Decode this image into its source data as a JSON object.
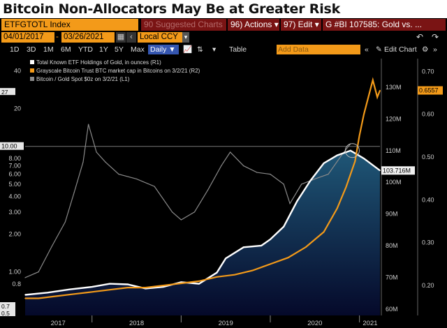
{
  "headline": "Bitcoin Non-Allocators May Be at Greater Risk",
  "toolbar": {
    "ticker": "ETFGTOTL Index",
    "suggested": "90 Suggested Charts",
    "actions": "96) Actions ▾",
    "edit": "97) Edit ▾",
    "graph_title": "G #BI 107585: Gold vs. ...",
    "date_start": "04/01/2017",
    "date_sep": "-",
    "date_end": "03/26/2021",
    "currency": "Local CCY",
    "ranges": [
      "1D",
      "3D",
      "1M",
      "6M",
      "YTD",
      "1Y",
      "5Y",
      "Max"
    ],
    "frequency": "Daily ▼",
    "table_label": "Table",
    "add_data": "Add Data",
    "edit_chart": "Edit Chart",
    "colors": {
      "orange": "#f39a19",
      "maroon": "#7a1414",
      "blue": "#3556b0"
    },
    "icons": [
      "calendar-icon",
      "prev-icon",
      "next-icon",
      "line-chart-icon",
      "settings-icon",
      "collapse-icon",
      "pencil-icon",
      "gear-icon",
      "undo-icon",
      "redo-icon"
    ]
  },
  "chart_data": {
    "type": "line",
    "title": "",
    "x_labels": [
      "2017",
      "2018",
      "2019",
      "2020",
      "2021"
    ],
    "x_range": [
      2017.25,
      2021.23
    ],
    "left_axis": {
      "scale": "log",
      "range": [
        0.45,
        50
      ],
      "ticks": [
        40,
        20,
        10.0,
        8.0,
        7.0,
        6.0,
        5.0,
        4.0,
        3.0,
        2.0,
        1.0,
        0.8
      ],
      "tick_labels": [
        "40",
        "20",
        "10.00",
        "8.00",
        "7.00",
        "6.00",
        "5.00",
        "4.00",
        "3.00",
        "2.00",
        "1.00",
        "0.8"
      ],
      "boxed_labels": [
        "27",
        "10.00",
        "0.7",
        "0.5"
      ]
    },
    "right_axis_inner": {
      "unit": "ounces",
      "range": [
        58,
        139
      ],
      "ticks": [
        "130M",
        "120M",
        "110M",
        "100M",
        "90M",
        "80M",
        "70M",
        "60M"
      ],
      "tick_values": [
        130,
        120,
        110,
        100,
        90,
        80,
        70,
        60
      ]
    },
    "right_axis_outer": {
      "unit": "bitcoins",
      "range": [
        0.13,
        0.73
      ],
      "ticks": [
        "0.70",
        "0.60",
        "0.50",
        "0.40",
        "0.30",
        "0.20"
      ],
      "tick_values": [
        0.7,
        0.6,
        0.5,
        0.4,
        0.3,
        0.2
      ]
    },
    "last_value_labels": {
      "gbtc_btc": "0.6557",
      "gold_etf": "103.716M"
    },
    "legend": [
      {
        "name": "Total Known ETF Holdings of Gold, in ounces (R1)",
        "color": "#ffffff"
      },
      {
        "name": "Grayscale Bitcoin Trust BTC market cap in Bitcoins on 3/2/21 (R2)",
        "color": "#f39a19"
      },
      {
        "name": "Bitcoin / Gold Spot $0z on 3/2/21 (L1)",
        "color": "#8a8a8a"
      }
    ],
    "series": [
      {
        "name": "Total Known ETF Holdings of Gold, in ounces (R1)",
        "axis": "right_inner",
        "unit": "M oz",
        "x": [
          2017.25,
          2017.5,
          2017.75,
          2018.0,
          2018.2,
          2018.4,
          2018.6,
          2018.8,
          2019.0,
          2019.2,
          2019.4,
          2019.5,
          2019.7,
          2019.9,
          2020.0,
          2020.15,
          2020.3,
          2020.45,
          2020.6,
          2020.75,
          2020.9,
          2021.05,
          2021.23
        ],
        "values": [
          64.5,
          65.2,
          66.2,
          67.0,
          68.0,
          67.8,
          66.5,
          67.0,
          68.5,
          68.0,
          71.5,
          76.0,
          79.5,
          80.0,
          82.0,
          86.0,
          94.0,
          100.5,
          106.0,
          108.5,
          110.0,
          107.5,
          103.716
        ]
      },
      {
        "name": "Grayscale Bitcoin Trust BTC market cap in Bitcoins on 3/2/21 (R2)",
        "axis": "right_outer",
        "unit": "BTC",
        "x": [
          2017.25,
          2017.4,
          2017.6,
          2017.8,
          2018.0,
          2018.2,
          2018.4,
          2018.6,
          2018.8,
          2019.0,
          2019.2,
          2019.4,
          2019.6,
          2019.8,
          2020.0,
          2020.2,
          2020.4,
          2020.6,
          2020.75,
          2020.85,
          2020.95,
          2021.0,
          2021.05,
          2021.1,
          2021.15,
          2021.2,
          2021.23
        ],
        "values": [
          0.17,
          0.17,
          0.175,
          0.18,
          0.185,
          0.19,
          0.195,
          0.195,
          0.2,
          0.205,
          0.21,
          0.22,
          0.225,
          0.235,
          0.25,
          0.265,
          0.29,
          0.325,
          0.38,
          0.43,
          0.49,
          0.55,
          0.6,
          0.64,
          0.68,
          0.64,
          0.6557
        ]
      },
      {
        "name": "Bitcoin / Gold Spot $0z on 3/2/21 (L1)",
        "axis": "left",
        "unit": "ratio",
        "x": [
          2017.25,
          2017.4,
          2017.55,
          2017.7,
          2017.8,
          2017.9,
          2017.96,
          2018.05,
          2018.15,
          2018.3,
          2018.5,
          2018.7,
          2018.9,
          2019.0,
          2019.15,
          2019.3,
          2019.45,
          2019.55,
          2019.7,
          2019.85,
          2020.0,
          2020.15,
          2020.22,
          2020.35,
          2020.5,
          2020.65,
          2020.8,
          2020.9
        ],
        "values": [
          0.9,
          1.0,
          1.6,
          2.5,
          4.3,
          7.5,
          15.0,
          9.0,
          7.5,
          6.0,
          5.5,
          4.8,
          3.0,
          2.6,
          3.0,
          4.5,
          7.0,
          9.0,
          7.0,
          6.2,
          6.0,
          5.0,
          3.5,
          5.0,
          5.5,
          6.0,
          8.5,
          10.5
        ]
      }
    ]
  }
}
